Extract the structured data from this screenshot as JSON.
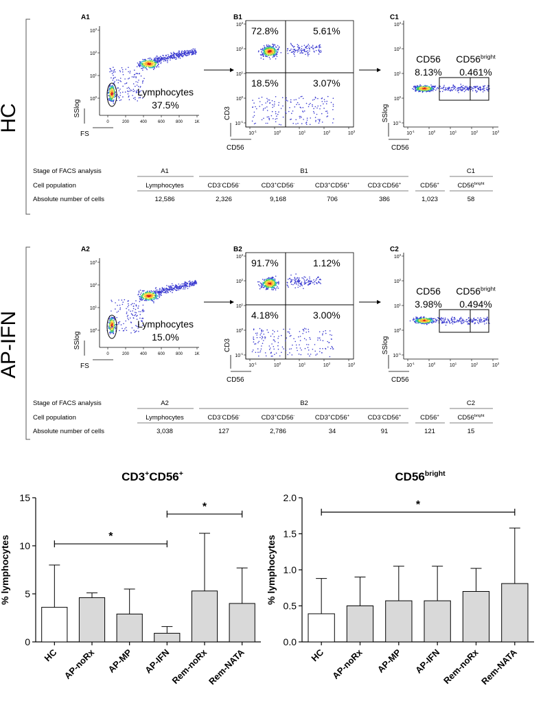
{
  "groups": [
    {
      "name": "HC",
      "panel_labels": [
        "A1",
        "B1",
        "C1"
      ],
      "fs_plot": {
        "x_label": "FS",
        "y_label": "SSlog",
        "x_ticks": [
          "0",
          "200",
          "400",
          "600",
          "800",
          "1K"
        ],
        "y_ticks": [
          "10^0",
          "10^1",
          "10^2",
          "10^3"
        ],
        "gate_label": "Lymphocytes",
        "gate_percent": "37.5%"
      },
      "quadrant_plot": {
        "x_label": "CD56",
        "y_label": "CD3",
        "quadrants": {
          "upper_left": "72.8%",
          "upper_right": "5.61%",
          "lower_left": "18.5%",
          "lower_right": "3.07%"
        }
      },
      "cd56_plot": {
        "x_label": "CD56",
        "y_label": "SSlog",
        "gate1_label": "CD56",
        "gate1_percent": "8.13%",
        "gate2_label": "CD56",
        "gate2_sup": "bright",
        "gate2_percent": "0.461%"
      },
      "table": {
        "row_labels": [
          "Stage of FACS analysis",
          "Cell population",
          "Absolute number of cells"
        ],
        "stage": [
          "A1",
          "B1",
          "C1"
        ],
        "populations": [
          {
            "base": "Lymphocytes",
            "sup1": "",
            "mid": "",
            "sup2": ""
          },
          {
            "base": "CD3",
            "sup1": "-",
            "mid": "CD56",
            "sup2": "-"
          },
          {
            "base": "CD3",
            "sup1": "+",
            "mid": "CD56",
            "sup2": "-"
          },
          {
            "base": "CD3",
            "sup1": "+",
            "mid": "CD56",
            "sup2": "+"
          },
          {
            "base": "CD3",
            "sup1": "-",
            "mid": "CD56",
            "sup2": "+"
          },
          {
            "base": "CD56",
            "sup1": "+",
            "mid": "",
            "sup2": ""
          },
          {
            "base": "CD56",
            "sup1": "bright",
            "mid": "",
            "sup2": ""
          }
        ],
        "counts": [
          "12,586",
          "2,326",
          "9,168",
          "706",
          "386",
          "1,023",
          "58"
        ]
      }
    },
    {
      "name": "AP-IFN",
      "panel_labels": [
        "A2",
        "B2",
        "C2"
      ],
      "fs_plot": {
        "x_label": "FS",
        "y_label": "SSlog",
        "x_ticks": [
          "0",
          "200",
          "400",
          "600",
          "800",
          "1K"
        ],
        "y_ticks": [
          "10^0",
          "10^1",
          "10^2",
          "10^3"
        ],
        "gate_label": "Lymphocytes",
        "gate_percent": "15.0%"
      },
      "quadrant_plot": {
        "x_label": "CD56",
        "y_label": "CD3",
        "quadrants": {
          "upper_left": "91.7%",
          "upper_right": "1.12%",
          "lower_left": "4.18%",
          "lower_right": "3.00%"
        }
      },
      "cd56_plot": {
        "x_label": "CD56",
        "y_label": "SSlog",
        "gate1_label": "CD56",
        "gate1_percent": "3.98%",
        "gate2_label": "CD56",
        "gate2_sup": "bright",
        "gate2_percent": "0.494%"
      },
      "table": {
        "row_labels": [
          "Stage of FACS analysis",
          "Cell population",
          "Absolute number of cells"
        ],
        "stage": [
          "A2",
          "B2",
          "C2"
        ],
        "populations": [
          {
            "base": "Lymphocytes",
            "sup1": "",
            "mid": "",
            "sup2": ""
          },
          {
            "base": "CD3",
            "sup1": "-",
            "mid": "CD56",
            "sup2": "-"
          },
          {
            "base": "CD3",
            "sup1": "+",
            "mid": "CD56",
            "sup2": "-"
          },
          {
            "base": "CD3",
            "sup1": "+",
            "mid": "CD56",
            "sup2": "+"
          },
          {
            "base": "CD3",
            "sup1": "-",
            "mid": "CD56",
            "sup2": "+"
          },
          {
            "base": "CD56",
            "sup1": "+",
            "mid": "",
            "sup2": ""
          },
          {
            "base": "CD56",
            "sup1": "bright",
            "mid": "",
            "sup2": ""
          }
        ],
        "counts": [
          "3,038",
          "127",
          "2,786",
          "34",
          "91",
          "121",
          "15"
        ]
      }
    }
  ],
  "log_tick_labels": [
    "10^-1",
    "10^0",
    "10^1",
    "10^2",
    "10^3"
  ],
  "chart_data": [
    {
      "type": "bar",
      "title": "CD3+CD56+",
      "title_parts": {
        "a": "CD3",
        "a_sup": "+",
        "b": "CD56",
        "b_sup": "+"
      },
      "ylabel": "% lymphocytes",
      "ylim": [
        0,
        15
      ],
      "yticks": [
        0,
        5,
        10,
        15
      ],
      "ytick_labels": [
        "0",
        "5",
        "10",
        "15"
      ],
      "categories": [
        "HC",
        "AP-noRx",
        "AP-MP",
        "AP-IFN",
        "Rem-noRx",
        "Rem-NATA"
      ],
      "values": [
        3.6,
        4.6,
        2.9,
        0.9,
        5.3,
        4.0
      ],
      "error_upper": [
        8.0,
        5.1,
        5.5,
        1.6,
        11.3,
        7.7
      ],
      "fills": [
        "#ffffff",
        "#d9d9d9",
        "#d9d9d9",
        "#d9d9d9",
        "#d9d9d9",
        "#d9d9d9"
      ],
      "significance": [
        {
          "from": 0,
          "to": 3,
          "y": 10.2,
          "label": "*"
        },
        {
          "from": 3,
          "to": 5,
          "y": 13.3,
          "label": "*"
        }
      ]
    },
    {
      "type": "bar",
      "title": "CD56bright",
      "title_parts": {
        "a": "CD56",
        "a_sup": "bright",
        "b": "",
        "b_sup": ""
      },
      "ylabel": "% lymphocytes",
      "ylim": [
        0,
        2.0
      ],
      "yticks": [
        0,
        0.5,
        1.0,
        1.5,
        2.0
      ],
      "ytick_labels": [
        "0.0",
        "0.5",
        "1.0",
        "1.5",
        "2.0"
      ],
      "categories": [
        "HC",
        "AP-noRx",
        "AP-MP",
        "AP-IFN",
        "Rem-noRx",
        "Rem-NATA"
      ],
      "values": [
        0.39,
        0.5,
        0.57,
        0.57,
        0.7,
        0.81
      ],
      "error_upper": [
        0.88,
        0.9,
        1.05,
        1.05,
        1.02,
        1.58
      ],
      "fills": [
        "#ffffff",
        "#d9d9d9",
        "#d9d9d9",
        "#d9d9d9",
        "#d9d9d9",
        "#d9d9d9"
      ],
      "significance": [
        {
          "from": 0,
          "to": 5,
          "y": 1.8,
          "label": "*"
        }
      ]
    }
  ]
}
